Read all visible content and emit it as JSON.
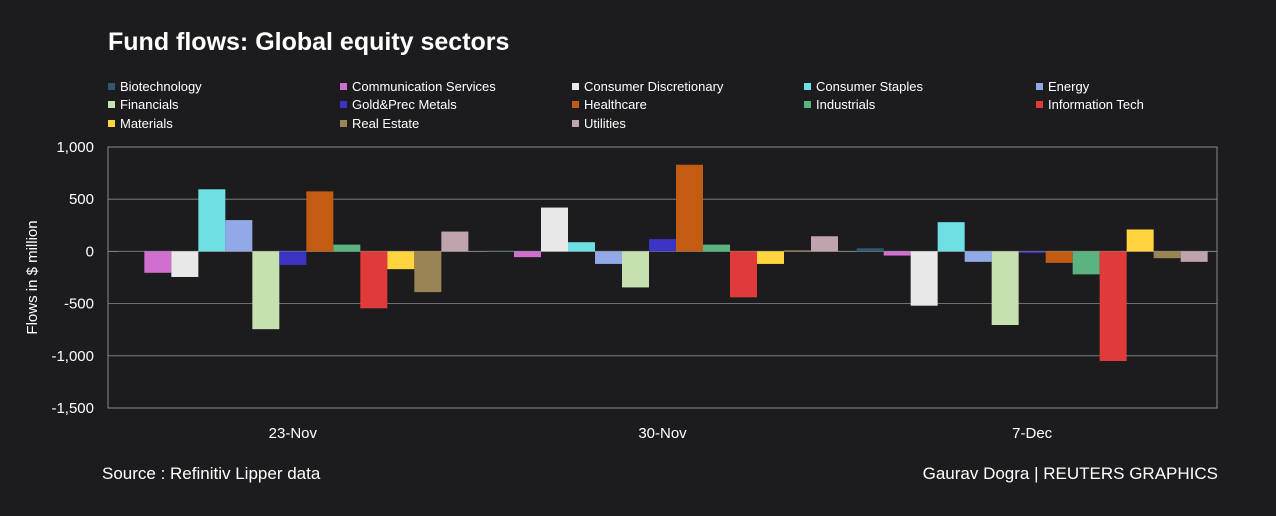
{
  "chart_data": {
    "type": "bar",
    "title": "Fund flows: Global equity sectors",
    "ylabel": "Flows in $ million",
    "xlabel": "",
    "ylim": [
      -1500,
      1000
    ],
    "yticks": [
      1000,
      500,
      0,
      -500,
      -1000,
      -1500
    ],
    "ytick_labels": [
      "1,000",
      "500",
      "0",
      "-500",
      "-1,000",
      "-1,500"
    ],
    "grid": true,
    "categories": [
      "23-Nov",
      "30-Nov",
      "7-Dec"
    ],
    "series": [
      {
        "name": "Biotechnology",
        "color": "#2e5870",
        "values": [
          0,
          8,
          30
        ]
      },
      {
        "name": "Communication Services",
        "color": "#d16fd0",
        "values": [
          -205,
          -55,
          -40
        ]
      },
      {
        "name": "Consumer Discretionary",
        "color": "#e8e8e8",
        "values": [
          -245,
          420,
          -520
        ]
      },
      {
        "name": "Consumer Staples",
        "color": "#6ee0e3",
        "values": [
          595,
          88,
          280
        ]
      },
      {
        "name": "Energy",
        "color": "#91a9e6",
        "values": [
          300,
          -120,
          -100
        ]
      },
      {
        "name": "Financials",
        "color": "#c6e0b0",
        "values": [
          -745,
          -345,
          -705
        ]
      },
      {
        "name": "Gold&Prec Metals",
        "color": "#3b33c4",
        "values": [
          -130,
          118,
          -15
        ]
      },
      {
        "name": "Healthcare",
        "color": "#c25c12",
        "values": [
          575,
          830,
          -110
        ]
      },
      {
        "name": "Industrials",
        "color": "#5bb37f",
        "values": [
          65,
          65,
          -220
        ]
      },
      {
        "name": "Information Tech",
        "color": "#e03a3a",
        "values": [
          -545,
          -440,
          -1050
        ]
      },
      {
        "name": "Materials",
        "color": "#ffd43d",
        "values": [
          -170,
          -120,
          210
        ]
      },
      {
        "name": "Real Estate",
        "color": "#9b8453",
        "values": [
          -390,
          10,
          -65
        ]
      },
      {
        "name": "Utilities",
        "color": "#bfa4ad",
        "values": [
          190,
          145,
          -100
        ]
      }
    ]
  },
  "footer": {
    "source": "Source : Refinitiv Lipper data",
    "credit": "Gaurav Dogra | REUTERS GRAPHICS"
  },
  "colors": {
    "background": "#1c1c1e",
    "grid": "#8a8a8a",
    "text": "#ffffff"
  }
}
